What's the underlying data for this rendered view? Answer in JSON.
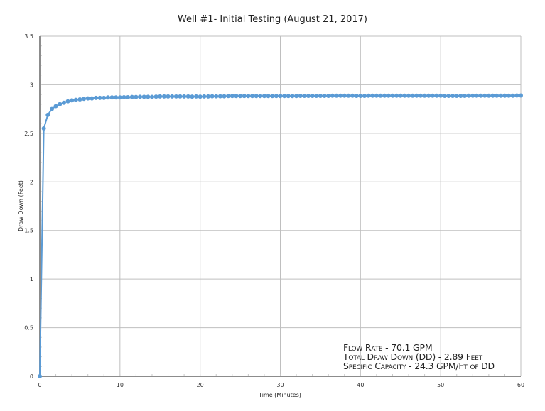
{
  "chart_data": {
    "type": "line",
    "title": "Well #1- Initial Testing (August 21, 2017)",
    "xlabel": "Time (Minutes)",
    "ylabel": "Draw Down (Feet)",
    "xlim": [
      0,
      60
    ],
    "ylim": [
      0,
      3.5
    ],
    "x_ticks": [
      0,
      10,
      20,
      30,
      40,
      50,
      60
    ],
    "y_ticks": [
      0,
      0.5,
      1,
      1.5,
      2,
      2.5,
      3,
      3.5
    ],
    "y_tick_labels": [
      "0",
      "0.5",
      "1",
      "1.5",
      "2",
      "2.5",
      "3",
      "3.5"
    ],
    "grid": true,
    "legend": "none",
    "series": [
      {
        "name": "Draw Down",
        "color": "#5b9bd5",
        "marker": "circle",
        "x_start": 0,
        "x_step": 0.5,
        "values": [
          0,
          2.55,
          2.69,
          2.75,
          2.78,
          2.8,
          2.815,
          2.83,
          2.84,
          2.845,
          2.85,
          2.855,
          2.86,
          2.86,
          2.865,
          2.865,
          2.865,
          2.87,
          2.87,
          2.87,
          2.87,
          2.872,
          2.872,
          2.874,
          2.874,
          2.876,
          2.876,
          2.876,
          2.875,
          2.878,
          2.88,
          2.88,
          2.88,
          2.88,
          2.88,
          2.88,
          2.88,
          2.88,
          2.878,
          2.88,
          2.878,
          2.88,
          2.88,
          2.882,
          2.882,
          2.882,
          2.882,
          2.884,
          2.884,
          2.884,
          2.884,
          2.884,
          2.884,
          2.884,
          2.884,
          2.884,
          2.884,
          2.884,
          2.884,
          2.884,
          2.884,
          2.884,
          2.884,
          2.884,
          2.884,
          2.886,
          2.886,
          2.886,
          2.886,
          2.886,
          2.886,
          2.886,
          2.886,
          2.888,
          2.888,
          2.888,
          2.888,
          2.888,
          2.888,
          2.886,
          2.886,
          2.886,
          2.888,
          2.888,
          2.888,
          2.888,
          2.888,
          2.888,
          2.888,
          2.888,
          2.888,
          2.888,
          2.888,
          2.888,
          2.888,
          2.888,
          2.888,
          2.888,
          2.888,
          2.888,
          2.888,
          2.886,
          2.886,
          2.886,
          2.886,
          2.886,
          2.886,
          2.888,
          2.888,
          2.888,
          2.888,
          2.888,
          2.888,
          2.888,
          2.888,
          2.888,
          2.888,
          2.888,
          2.888,
          2.89,
          2.89
        ]
      }
    ],
    "annotations": [
      "Flow Rate - 70.1 GPM",
      "Total Draw Down (DD) - 2.89 Feet",
      "Specific Capacity - 24.3 GPM/Ft of DD"
    ]
  },
  "annotation": {
    "line1": "Flow Rate - 70.1 GPM",
    "line2": "Total Draw Down (DD) - 2.89 Feet",
    "line3": "Specific Capacity - 24.3 GPM/Ft of DD"
  },
  "colors": {
    "series": "#5b9bd5",
    "grid": "#bfbfbf",
    "axis": "#8c8c8c"
  }
}
